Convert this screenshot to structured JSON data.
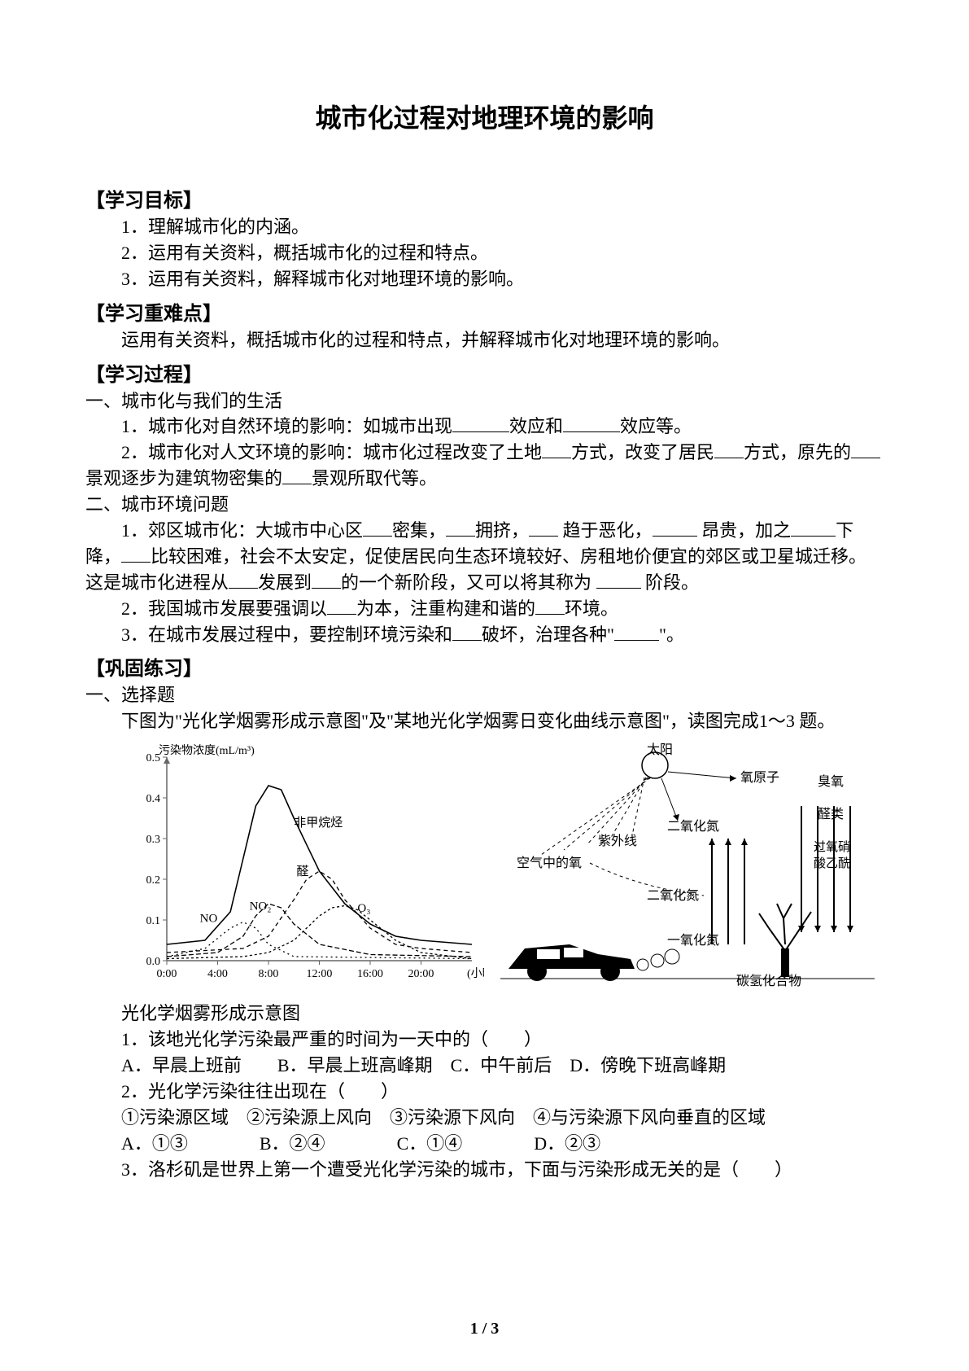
{
  "title": "城市化过程对地理环境的影响",
  "sections": {
    "goals": {
      "head": "【学习目标】",
      "items": [
        "1．理解城市化的内涵。",
        "2．运用有关资料，概括城市化的过程和特点。",
        "3．运用有关资料，解释城市化对地理环境的影响。"
      ]
    },
    "keypoints": {
      "head": "【学习重难点】",
      "text": "运用有关资料，概括城市化的过程和特点，并解释城市化对地理环境的影响。"
    },
    "process": {
      "head": "【学习过程】",
      "s1_head": "一、城市化与我们的生活",
      "s1_1_a": "1．城市化对自然环境的影响：如城市出现",
      "s1_1_b": "效应和",
      "s1_1_c": "效应等。",
      "s1_2_a": "2．城市化对人文环境的影响：城市化过程改变了土地",
      "s1_2_b": "方式，改变了居民",
      "s1_2_c": "方式，原先的",
      "s1_2_d": "景观逐步为建筑物密集的",
      "s1_2_e": "景观所取代等。",
      "s2_head": "二、城市环境问题",
      "s2_1_a": "1．郊区城市化：大城市中心区",
      "s2_1_b": "密集，",
      "s2_1_c": "拥挤，",
      "s2_1_d": " 趋于恶化，",
      "s2_1_e": " 昂贵，加之",
      "s2_1_f": "下降，",
      "s2_1_g": "比较困难，社会不太安定，促使居民向生态环境较好、房租地价便宜的郊区或卫星城迁移。这是城市化进程从",
      "s2_1_h": "发展到",
      "s2_1_i": "的一个新阶段，又可以将其称为 ",
      "s2_1_j": " 阶段。",
      "s2_2_a": "2．我国城市发展要强调以",
      "s2_2_b": "为本，注重构建和谐的",
      "s2_2_c": "环境。",
      "s2_3_a": "3．在城市发展过程中，要控制环境污染和",
      "s2_3_b": "破坏，治理各种\"",
      "s2_3_c": "\"。"
    },
    "practice": {
      "head": "【巩固练习】",
      "mc_head": "一、选择题",
      "intro": "下图为\"光化学烟雾形成示意图\"及\"某地光化学烟雾日变化曲线示意图\"，读图完成1～3 题。",
      "fig_caption": "光化学烟雾形成示意图",
      "q1": "1．该地光化学污染最严重的时间为一天中的（　　）",
      "q1_opts": "A．早晨上班前　　B．早晨上班高峰期　C．中午前后　D．傍晚下班高峰期",
      "q2": "2．光化学污染往往出现在（　　）",
      "q2_stems": "①污染源区域　②污染源上风向　③污染源下风向　④与污染源下风向垂直的区域",
      "q2_opts": "A．①③　　　　B．②④　　　　C．①④　　　　D．②③",
      "q3": "3．洛杉矶是世界上第一个遭受光化学污染的城市，下面与污染形成无关的是（　　）"
    }
  },
  "chart": {
    "type": "line",
    "y_axis_label": "污染物浓度(mL/m³)",
    "x_axis_label": "(小时)",
    "ylim": [
      0,
      0.5
    ],
    "yticks": [
      0,
      0.1,
      0.2,
      0.3,
      0.4,
      0.5
    ],
    "xticks_labels": [
      "0:00",
      "4:00",
      "8:00",
      "12:00",
      "16:00",
      "20:00"
    ],
    "xticks_pos": [
      0,
      4,
      8,
      12,
      16,
      20
    ],
    "xlim": [
      0,
      24
    ],
    "grid_color": "#666666",
    "line_color": "#000000",
    "background_color": "#ffffff",
    "series": [
      {
        "name": "非甲烷烃",
        "label_x": 10,
        "label_y": 0.33,
        "dash": "",
        "width": 1.6,
        "points": [
          [
            0,
            0.04
          ],
          [
            3,
            0.05
          ],
          [
            5,
            0.12
          ],
          [
            6,
            0.25
          ],
          [
            7,
            0.38
          ],
          [
            8,
            0.43
          ],
          [
            9,
            0.42
          ],
          [
            10,
            0.35
          ],
          [
            12,
            0.22
          ],
          [
            14,
            0.14
          ],
          [
            16,
            0.09
          ],
          [
            18,
            0.06
          ],
          [
            20,
            0.05
          ],
          [
            24,
            0.04
          ]
        ]
      },
      {
        "name": "醛",
        "label_x": 10.2,
        "label_y": 0.21,
        "dash": "5,4",
        "width": 1.3,
        "points": [
          [
            0,
            0.02
          ],
          [
            6,
            0.03
          ],
          [
            8,
            0.06
          ],
          [
            10,
            0.15
          ],
          [
            11,
            0.2
          ],
          [
            12,
            0.22
          ],
          [
            13,
            0.2
          ],
          [
            14,
            0.15
          ],
          [
            16,
            0.08
          ],
          [
            18,
            0.04
          ],
          [
            20,
            0.03
          ],
          [
            24,
            0.02
          ]
        ]
      },
      {
        "name": "NO₂",
        "label_x": 6.5,
        "label_y": 0.125,
        "dash": "6,3",
        "width": 1.3,
        "points": [
          [
            0,
            0.01
          ],
          [
            4,
            0.02
          ],
          [
            6,
            0.06
          ],
          [
            7,
            0.11
          ],
          [
            8,
            0.14
          ],
          [
            9,
            0.13
          ],
          [
            10,
            0.09
          ],
          [
            12,
            0.04
          ],
          [
            16,
            0.015
          ],
          [
            24,
            0.01
          ]
        ]
      },
      {
        "name": "O₃",
        "label_x": 15,
        "label_y": 0.12,
        "dash": "3,3",
        "width": 1.3,
        "points": [
          [
            0,
            0.005
          ],
          [
            6,
            0.01
          ],
          [
            8,
            0.02
          ],
          [
            10,
            0.05
          ],
          [
            12,
            0.11
          ],
          [
            13,
            0.13
          ],
          [
            14,
            0.135
          ],
          [
            15,
            0.125
          ],
          [
            16,
            0.1
          ],
          [
            18,
            0.05
          ],
          [
            20,
            0.02
          ],
          [
            24,
            0.005
          ]
        ]
      },
      {
        "name": "NO",
        "label_x": 2.6,
        "label_y": 0.095,
        "dash": "2,4",
        "width": 1.3,
        "points": [
          [
            0,
            0.01
          ],
          [
            3,
            0.03
          ],
          [
            5,
            0.08
          ],
          [
            6,
            0.095
          ],
          [
            7,
            0.08
          ],
          [
            8,
            0.04
          ],
          [
            10,
            0.01
          ],
          [
            24,
            0.005
          ]
        ]
      }
    ]
  },
  "diagram": {
    "sun": "太阳",
    "uv": "紫外线",
    "air_o": "空气中的氧",
    "o_atom": "氧原子",
    "no2": "二氧化氮",
    "no2_b": "二氧化氮",
    "no": "一氧化氮",
    "hc": "碳氢化合物",
    "ozone": "臭氧",
    "aldehyde": "醛类",
    "pan": "过氧硝酸乙酰",
    "colors": {
      "line": "#000000",
      "fill": "#000000",
      "bg": "#ffffff"
    }
  },
  "page_num": "1 / 3"
}
